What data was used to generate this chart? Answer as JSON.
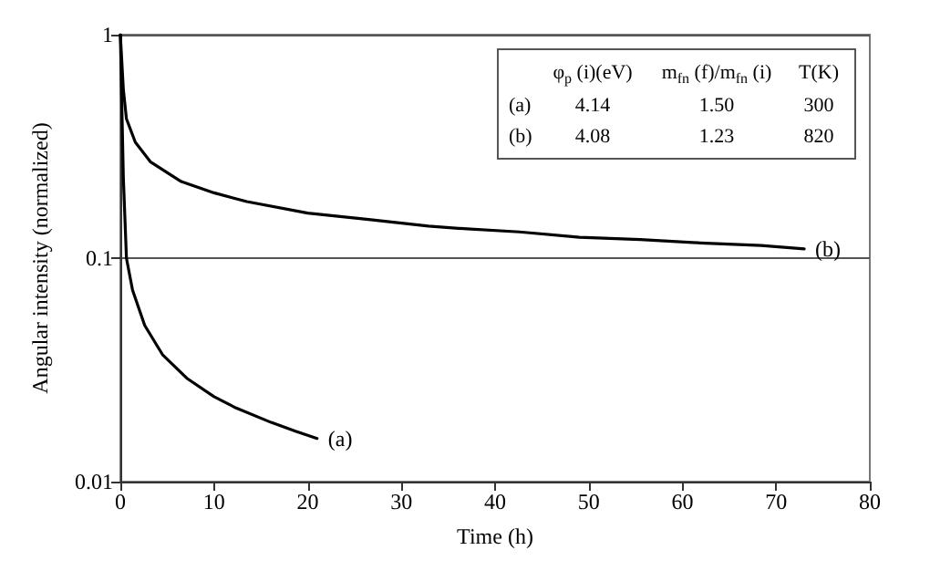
{
  "chart_data": {
    "type": "line",
    "xlabel": "Time (h)",
    "ylabel": "Angular intensity (normalized)",
    "log": "y",
    "grid": "y",
    "marker": "none",
    "line_style": "solid",
    "xlim": [
      0,
      80
    ],
    "xticks": [
      0,
      10,
      20,
      30,
      40,
      50,
      60,
      70,
      80
    ],
    "ylim": [
      0.01,
      1
    ],
    "yticks": [
      0.01,
      0.1,
      1
    ],
    "series": [
      {
        "color": "#000000",
        "x": [
          0,
          0.32,
          0.65,
          1.3,
          2.6,
          4.5,
          7.1,
          10,
          12.3,
          16.1,
          18.7,
          21
        ],
        "values": [
          1,
          0.23,
          0.1,
          0.072,
          0.05,
          0.037,
          0.029,
          0.024,
          0.0214,
          0.0184,
          0.0168,
          0.0156
        ]
      },
      {
        "color": "#000000",
        "x": [
          0,
          0.32,
          0.65,
          1.6,
          3.2,
          6.5,
          10,
          13.5,
          20,
          26.5,
          32.9,
          36.1,
          42.6,
          49,
          55.5,
          61.9,
          68.4,
          73
        ],
        "values": [
          1,
          0.57,
          0.42,
          0.33,
          0.27,
          0.22,
          0.196,
          0.179,
          0.159,
          0.149,
          0.139,
          0.136,
          0.131,
          0.124,
          0.121,
          0.117,
          0.114,
          0.11
        ]
      }
    ],
    "annotations": [
      {
        "text": "(a)",
        "x": 21,
        "y": 0.0156
      },
      {
        "text": "(b)",
        "x": 73,
        "y": 0.11
      },
      "φ$_{p}$ (i)(eV)",
      "m$_{fn}$ (f)/m$_{fn}$ (i)",
      "T(K)",
      "(a)",
      "4.14",
      "1.50",
      "300",
      "(b)",
      "4.08",
      "1.23",
      "820"
    ]
  }
}
